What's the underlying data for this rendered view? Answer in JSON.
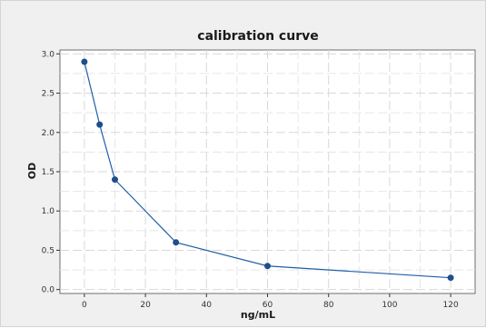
{
  "chart_data": {
    "type": "line",
    "title": "calibration curve",
    "xlabel": "ng/mL",
    "ylabel": "OD",
    "xlim": [
      -8,
      128
    ],
    "ylim": [
      -0.05,
      3.05
    ],
    "x_ticks": [
      0,
      20,
      40,
      60,
      80,
      100,
      120
    ],
    "y_ticks": [
      0.0,
      0.5,
      1.0,
      1.5,
      2.0,
      2.5,
      3.0
    ],
    "x_tick_labels": [
      "0",
      "20",
      "40",
      "60",
      "80",
      "100",
      "120"
    ],
    "y_tick_labels": [
      "0.0",
      "0.5",
      "1.0",
      "1.5",
      "2.0",
      "2.5",
      "3.0"
    ],
    "grid": true,
    "series": [
      {
        "x": [
          0,
          5,
          10,
          30,
          60,
          120
        ],
        "y": [
          2.9,
          2.1,
          1.4,
          0.6,
          0.3,
          0.15
        ]
      }
    ],
    "colors": {
      "line": "#1f5fa8",
      "marker": "#1f4e8c",
      "frame_background": "#f0f0f0",
      "plot_background": "#ffffff",
      "grid": "#d9d9d9"
    }
  }
}
